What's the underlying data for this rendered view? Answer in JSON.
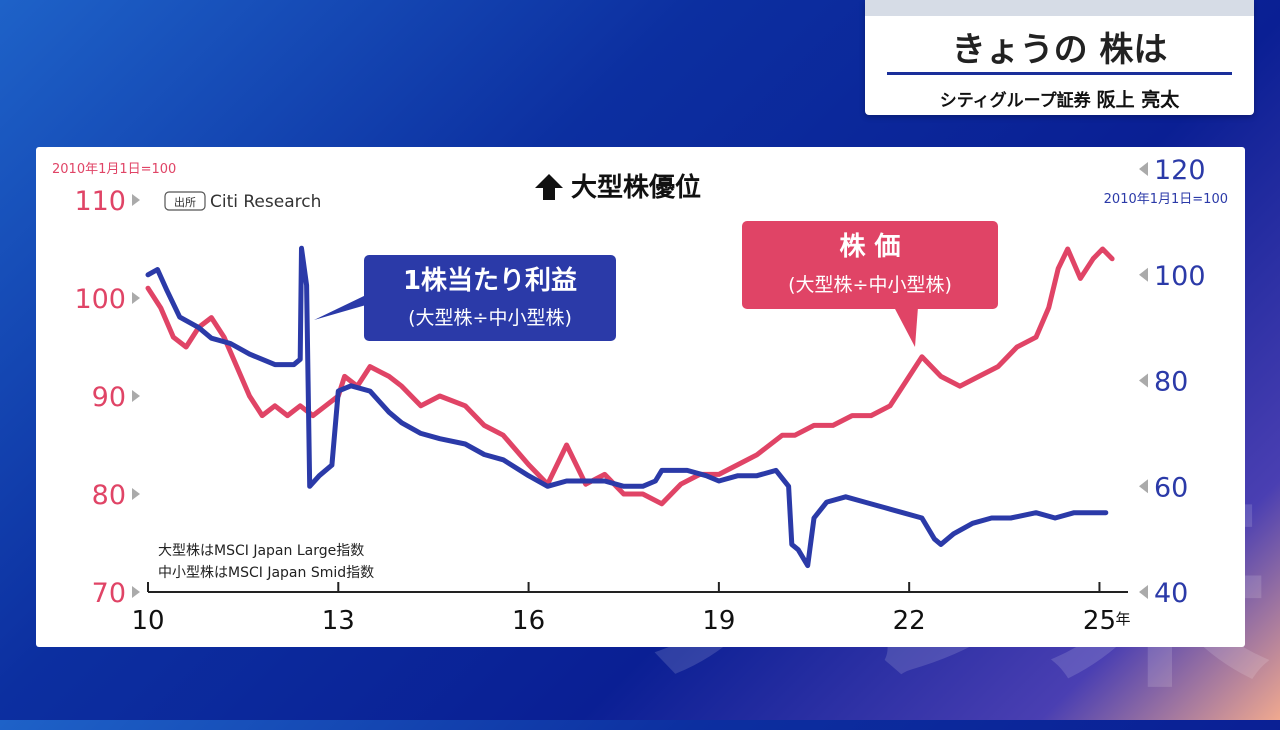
{
  "header": {
    "title": "きょうの 株は",
    "subtitle_company": "シティグループ証券",
    "subtitle_name": "阪上 亮太"
  },
  "chart_data": {
    "type": "line",
    "title": "大型株優位",
    "source_tag": "出所",
    "source": "Citi Research",
    "left_axis_note": "2010年1月1日=100",
    "right_axis_note": "2010年1月1日=100",
    "x_unit": "年",
    "x_ticks": [
      "10",
      "13",
      "16",
      "19",
      "22",
      "25"
    ],
    "x_range": [
      2010,
      2025.45
    ],
    "left_axis": {
      "ticks": [
        70,
        80,
        90,
        100,
        110
      ],
      "range": [
        70,
        110
      ],
      "color": "#e04466"
    },
    "right_axis": {
      "ticks": [
        40,
        60,
        80,
        100,
        120
      ],
      "range": [
        40,
        120
      ],
      "color": "#2b3aa8"
    },
    "notes": [
      "大型株はMSCI Japan Large指数",
      "中小型株はMSCI Japan Smid指数"
    ],
    "series": [
      {
        "name": "株 価",
        "name_sub": "(大型株÷中小型株)",
        "axis": "left",
        "color": "#e04466",
        "x": [
          2010.0,
          2010.2,
          2010.4,
          2010.6,
          2010.8,
          2011.0,
          2011.2,
          2011.4,
          2011.6,
          2011.8,
          2012.0,
          2012.2,
          2012.4,
          2012.6,
          2012.8,
          2013.0,
          2013.1,
          2013.3,
          2013.5,
          2013.8,
          2014.0,
          2014.3,
          2014.6,
          2015.0,
          2015.3,
          2015.6,
          2016.0,
          2016.3,
          2016.6,
          2016.9,
          2017.2,
          2017.5,
          2017.8,
          2018.1,
          2018.4,
          2018.7,
          2019.0,
          2019.3,
          2019.6,
          2020.0,
          2020.2,
          2020.5,
          2020.8,
          2021.1,
          2021.4,
          2021.7,
          2022.0,
          2022.2,
          2022.5,
          2022.8,
          2023.1,
          2023.4,
          2023.7,
          2024.0,
          2024.2,
          2024.35,
          2024.5,
          2024.7,
          2024.9,
          2025.05,
          2025.2
        ],
        "values": [
          101,
          99,
          96,
          95,
          97,
          98,
          96,
          93,
          90,
          88,
          89,
          88,
          89,
          88,
          89,
          90,
          92,
          91,
          93,
          92,
          91,
          89,
          90,
          89,
          87,
          86,
          83,
          81,
          85,
          81,
          82,
          80,
          80,
          79,
          81,
          82,
          82,
          83,
          84,
          86,
          86,
          87,
          87,
          88,
          88,
          89,
          92,
          94,
          92,
          91,
          92,
          93,
          95,
          96,
          99,
          103,
          105,
          102,
          104,
          105,
          104
        ]
      },
      {
        "name": "1株当たり利益",
        "name_sub": "(大型株÷中小型株)",
        "axis": "right",
        "color": "#2b3aa8",
        "x": [
          2010.0,
          2010.15,
          2010.3,
          2010.5,
          2010.8,
          2011.0,
          2011.3,
          2011.6,
          2012.0,
          2012.3,
          2012.4,
          2012.42,
          2012.5,
          2012.55,
          2012.7,
          2012.9,
          2013.0,
          2013.2,
          2013.5,
          2013.8,
          2014.0,
          2014.3,
          2014.6,
          2015.0,
          2015.3,
          2015.6,
          2016.0,
          2016.3,
          2016.6,
          2016.9,
          2017.2,
          2017.5,
          2017.8,
          2018.0,
          2018.1,
          2018.3,
          2018.5,
          2018.8,
          2019.0,
          2019.3,
          2019.6,
          2019.9,
          2020.1,
          2020.15,
          2020.25,
          2020.4,
          2020.5,
          2020.7,
          2021.0,
          2021.3,
          2021.6,
          2021.9,
          2022.2,
          2022.4,
          2022.5,
          2022.7,
          2023.0,
          2023.3,
          2023.6,
          2024.0,
          2024.3,
          2024.6,
          2024.9,
          2025.1
        ],
        "values": [
          100,
          101,
          97,
          92,
          90,
          88,
          87,
          85,
          83,
          83,
          84,
          105,
          98,
          60,
          62,
          64,
          78,
          79,
          78,
          74,
          72,
          70,
          69,
          68,
          66,
          65,
          62,
          60,
          61,
          61,
          61,
          60,
          60,
          61,
          63,
          63,
          63,
          62,
          61,
          62,
          62,
          63,
          60,
          49,
          48,
          45,
          54,
          57,
          58,
          57,
          56,
          55,
          54,
          50,
          49,
          51,
          53,
          54,
          54,
          55,
          54,
          55,
          55,
          55
        ]
      }
    ]
  }
}
